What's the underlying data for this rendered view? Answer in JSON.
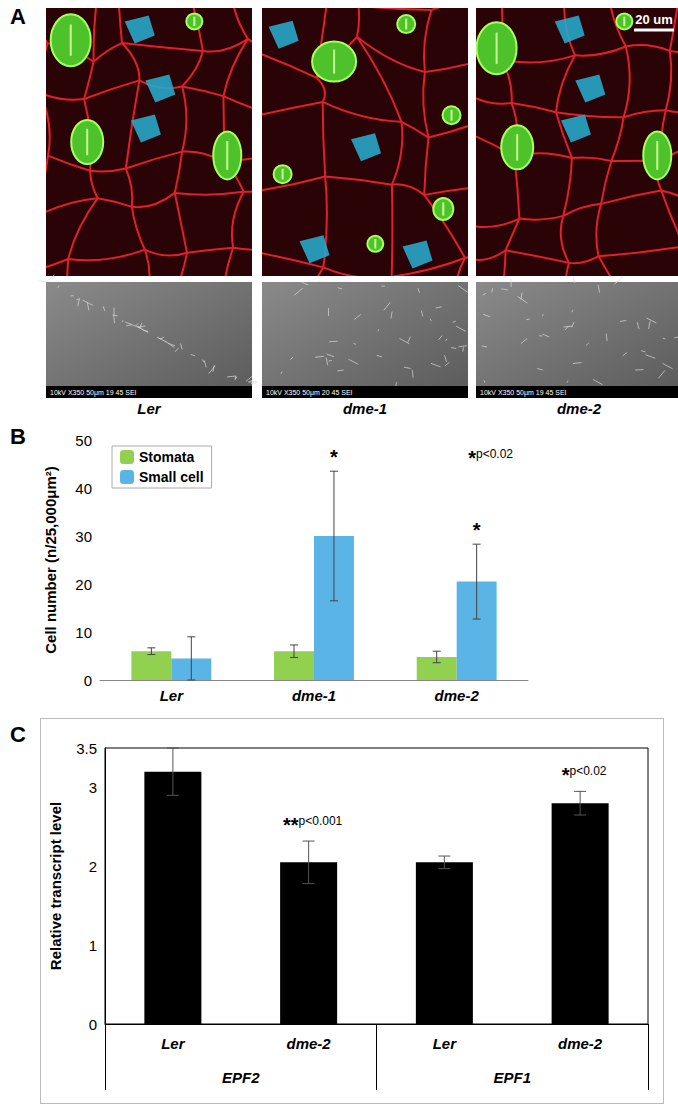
{
  "panel_labels": [
    "A",
    "B",
    "C"
  ],
  "images": {
    "genotypes": [
      "Ler",
      "dme-1",
      "dme-2"
    ],
    "scale_bar": "20 um",
    "sem_captions": [
      "10kV   X350   50μm   19 45 SEI",
      "10kV   X350   50μm   20 45 SEI",
      "10kV   X350   50μm   19 45 SEI"
    ]
  },
  "chart_data": [
    {
      "type": "bar",
      "y_label": "Cell number (n/25,000μm²)",
      "categories": [
        "Ler",
        "dme-1",
        "dme-2"
      ],
      "series": [
        {
          "name": "Stomata",
          "color": "#92d050",
          "values": [
            6,
            6,
            4.8
          ],
          "errors": [
            0.7,
            1.3,
            1.2
          ]
        },
        {
          "name": "Small cell",
          "color": "#5ab4e6",
          "values": [
            4.5,
            30,
            20.5
          ],
          "errors": [
            4.5,
            13.5,
            7.8
          ]
        }
      ],
      "ylim": [
        0,
        50
      ],
      "yticks": [
        0,
        10,
        20,
        30,
        40,
        50
      ],
      "grid": false,
      "legend": "upper left",
      "annotations": [
        {
          "text": "*",
          "series": "Small cell",
          "category": "dme-1"
        },
        {
          "text": "*",
          "series": "Small cell",
          "category": "dme-2"
        },
        {
          "text": "*p<0.02"
        }
      ]
    },
    {
      "type": "bar",
      "y_label": "Relative transcript level",
      "categories": [
        "Ler",
        "dme-2",
        "Ler",
        "dme-2"
      ],
      "groups": [
        "EPF2",
        "EPF1"
      ],
      "values": [
        3.2,
        2.05,
        2.05,
        2.8
      ],
      "errors": [
        0.3,
        0.27,
        0.08,
        0.15
      ],
      "color": "#000000",
      "ylim": [
        0,
        3.5
      ],
      "yticks": [
        0,
        1,
        2,
        3
      ],
      "grid": false,
      "annotations": [
        {
          "text": "**p<0.001",
          "index": 1
        },
        {
          "text": "*p<0.02",
          "index": 3
        }
      ]
    }
  ]
}
